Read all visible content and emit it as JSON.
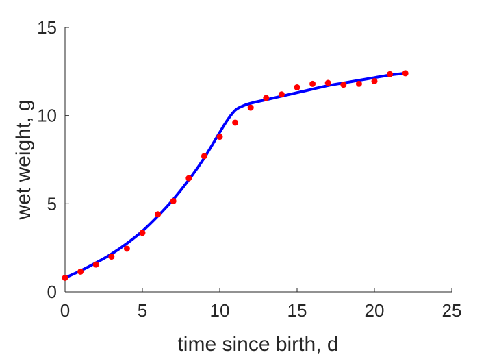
{
  "chart_data": {
    "type": "scatter",
    "title": "",
    "xlabel": "time since birth, d",
    "ylabel": "wet weight, g",
    "xlim": [
      0,
      25
    ],
    "ylim": [
      0,
      15
    ],
    "xticks": [
      0,
      5,
      10,
      15,
      20,
      25
    ],
    "yticks": [
      0,
      5,
      10,
      15
    ],
    "grid": false,
    "legend": "none",
    "series": [
      {
        "kind": "scatter",
        "color": "#ff0000",
        "x": [
          0,
          1,
          2,
          3,
          4,
          5,
          6,
          7,
          8,
          9,
          10,
          11,
          12,
          13,
          14,
          15,
          16,
          17,
          18,
          19,
          20,
          21,
          22
        ],
        "y": [
          0.8,
          1.15,
          1.55,
          2.0,
          2.45,
          3.35,
          4.4,
          5.15,
          6.45,
          7.7,
          8.8,
          9.6,
          10.45,
          11.0,
          11.2,
          11.6,
          11.8,
          11.85,
          11.75,
          11.8,
          11.95,
          12.35,
          12.4
        ]
      },
      {
        "kind": "line",
        "color": "#0000ff",
        "x": [
          0,
          1,
          2,
          3,
          4,
          5,
          6,
          7,
          8,
          9,
          10,
          10.5,
          11,
          11.5,
          12,
          13,
          14,
          15,
          16,
          17,
          18,
          19,
          20,
          21,
          22
        ],
        "y": [
          0.8,
          1.2,
          1.65,
          2.15,
          2.75,
          3.45,
          4.3,
          5.25,
          6.35,
          7.6,
          9.05,
          9.75,
          10.3,
          10.55,
          10.7,
          10.9,
          11.1,
          11.3,
          11.5,
          11.7,
          11.85,
          12.0,
          12.15,
          12.3,
          12.4
        ]
      }
    ]
  }
}
